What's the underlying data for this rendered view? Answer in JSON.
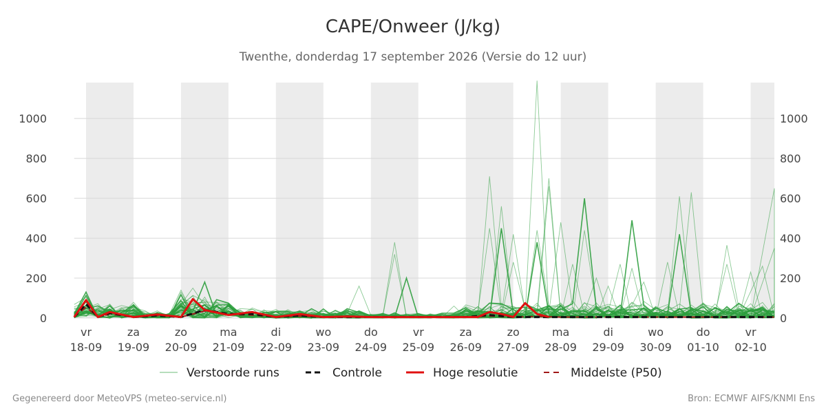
{
  "title": "CAPE/Onweer (J/kg)",
  "subtitle": "Twenthe, donderdag 17 september 2026 (Versie do 12 uur)",
  "footer_left": "Gegenereerd door MeteoVPS (meteo-service.nl)",
  "footer_right": "Bron: ECMWF AIFS/KNMI Ens",
  "colors": {
    "ensemble": "#2e9e3e",
    "control": "#111111",
    "high_res": "#e01010",
    "median": "#a01818",
    "night_band": "#ececec",
    "grid": "#d8d8d8"
  },
  "chart_data": {
    "type": "line",
    "x_unit": "days since 18-09 00:00",
    "ylim": [
      0,
      1180
    ],
    "xlim": [
      -0.25,
      14.5
    ],
    "yticks": [
      0,
      200,
      400,
      600,
      800,
      1000
    ],
    "grid": true,
    "legend_position": "bottom",
    "x_ticks": [
      {
        "day": "vr",
        "date": "18-09"
      },
      {
        "day": "za",
        "date": "19-09"
      },
      {
        "day": "zo",
        "date": "20-09"
      },
      {
        "day": "ma",
        "date": "21-09"
      },
      {
        "day": "di",
        "date": "22-09"
      },
      {
        "day": "wo",
        "date": "23-09"
      },
      {
        "day": "do",
        "date": "24-09"
      },
      {
        "day": "vr",
        "date": "25-09"
      },
      {
        "day": "za",
        "date": "26-09"
      },
      {
        "day": "zo",
        "date": "27-09"
      },
      {
        "day": "ma",
        "date": "28-09"
      },
      {
        "day": "di",
        "date": "29-09"
      },
      {
        "day": "wo",
        "date": "30-09"
      },
      {
        "day": "do",
        "date": "01-10"
      },
      {
        "day": "vr",
        "date": "02-10"
      }
    ],
    "weekend_bands": [
      [
        0,
        1
      ],
      [
        2,
        3
      ],
      [
        4,
        5
      ],
      [
        6,
        7
      ],
      [
        8,
        9
      ],
      [
        10,
        11
      ],
      [
        12,
        13
      ],
      [
        14,
        14.5
      ]
    ],
    "legend": [
      {
        "key": "ensemble",
        "label": "Verstoorde runs"
      },
      {
        "key": "control",
        "label": "Controle"
      },
      {
        "key": "high_res",
        "label": "Hoge resolutie"
      },
      {
        "key": "median",
        "label": "Middelste (P50)"
      }
    ],
    "series": [
      {
        "name": "Hoge resolutie",
        "key": "high_res",
        "x": [
          -0.25,
          0,
          0.25,
          0.5,
          1,
          1.5,
          2,
          2.25,
          2.5,
          3,
          3.5,
          4,
          4.5,
          5,
          5.5,
          6,
          6.5,
          7,
          7.5,
          8,
          8.25,
          8.5,
          8.75,
          9,
          9.25,
          9.5,
          9.75
        ],
        "y": [
          5,
          90,
          5,
          30,
          5,
          18,
          5,
          95,
          40,
          15,
          30,
          5,
          20,
          5,
          8,
          5,
          5,
          5,
          5,
          5,
          5,
          30,
          20,
          5,
          75,
          20,
          5
        ]
      },
      {
        "name": "Controle",
        "key": "control",
        "x": [
          -0.25,
          0,
          0.25,
          0.5,
          1,
          1.5,
          2,
          2.5,
          3,
          3.5,
          4,
          4.5,
          5,
          6,
          7,
          8,
          8.5,
          9,
          9.5,
          10,
          11,
          12,
          13,
          14,
          14.5
        ],
        "y": [
          5,
          70,
          5,
          25,
          5,
          12,
          5,
          40,
          20,
          20,
          5,
          12,
          5,
          5,
          5,
          5,
          15,
          5,
          5,
          5,
          5,
          5,
          5,
          5,
          5
        ]
      },
      {
        "name": "Middelste (P50)",
        "key": "median",
        "x": [
          -0.25,
          0,
          0.25,
          0.5,
          1,
          1.5,
          2,
          2.5,
          3,
          3.5,
          4,
          4.5,
          5,
          6,
          7,
          8,
          8.5,
          9,
          9.5,
          10,
          11,
          12,
          13,
          14,
          14.5
        ],
        "y": [
          5,
          55,
          5,
          20,
          5,
          12,
          5,
          35,
          18,
          15,
          5,
          10,
          5,
          5,
          5,
          5,
          10,
          5,
          8,
          5,
          5,
          5,
          5,
          5,
          5
        ]
      }
    ],
    "ensemble_peaks": [
      {
        "x": 0,
        "y": 130
      },
      {
        "x": 0.5,
        "y": 60
      },
      {
        "x": 1.5,
        "y": 25
      },
      {
        "x": 2,
        "y": 140
      },
      {
        "x": 2.25,
        "y": 150
      },
      {
        "x": 2.5,
        "y": 180
      },
      {
        "x": 3.5,
        "y": 50
      },
      {
        "x": 5.75,
        "y": 160
      },
      {
        "x": 6.5,
        "y": 380
      },
      {
        "x": 6.5,
        "y": 320
      },
      {
        "x": 6.75,
        "y": 200
      },
      {
        "x": 7.75,
        "y": 60
      },
      {
        "x": 8.5,
        "y": 710
      },
      {
        "x": 8.5,
        "y": 450
      },
      {
        "x": 8.75,
        "y": 560
      },
      {
        "x": 8.75,
        "y": 450
      },
      {
        "x": 9,
        "y": 420
      },
      {
        "x": 9,
        "y": 280
      },
      {
        "x": 9.5,
        "y": 1190
      },
      {
        "x": 9.5,
        "y": 440
      },
      {
        "x": 9.5,
        "y": 380
      },
      {
        "x": 9.75,
        "y": 700
      },
      {
        "x": 9.75,
        "y": 660
      },
      {
        "x": 10,
        "y": 480
      },
      {
        "x": 10.25,
        "y": 270
      },
      {
        "x": 10.5,
        "y": 600
      },
      {
        "x": 10.5,
        "y": 440
      },
      {
        "x": 10.75,
        "y": 200
      },
      {
        "x": 11,
        "y": 160
      },
      {
        "x": 11.25,
        "y": 270
      },
      {
        "x": 11.5,
        "y": 490
      },
      {
        "x": 11.5,
        "y": 250
      },
      {
        "x": 11.75,
        "y": 180
      },
      {
        "x": 12.25,
        "y": 280
      },
      {
        "x": 12.5,
        "y": 610
      },
      {
        "x": 12.5,
        "y": 420
      },
      {
        "x": 12.75,
        "y": 630
      },
      {
        "x": 13.5,
        "y": 365
      },
      {
        "x": 13.5,
        "y": 270
      },
      {
        "x": 14,
        "y": 230
      },
      {
        "x": 14.25,
        "y": 260
      },
      {
        "x": 14.5,
        "y": 650
      },
      {
        "x": 14.5,
        "y": 350
      }
    ]
  }
}
